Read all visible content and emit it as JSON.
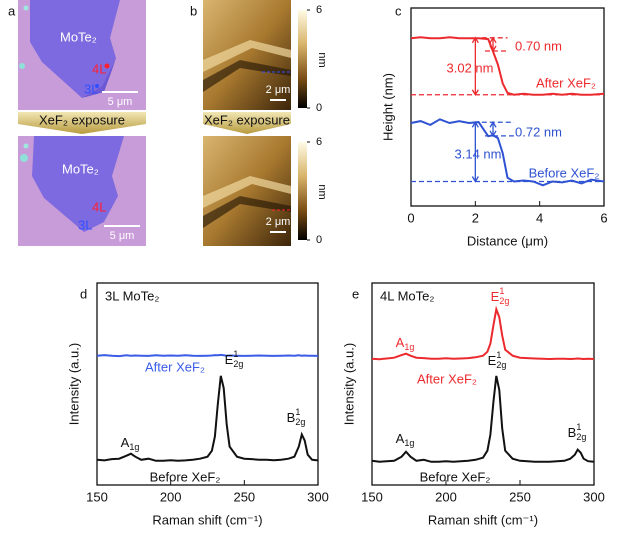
{
  "figure": {
    "a": {
      "label": "a",
      "before": {
        "material": "MoTe₂",
        "layer_4": "4L",
        "layer_3": "3L",
        "scale": "5 μm"
      },
      "treatment": "XeF₂ exposure",
      "after": {
        "material": "MoTe₂",
        "layer_4": "4L",
        "layer_3": "3L",
        "scale": "5 μm"
      }
    },
    "b": {
      "label": "b",
      "treatment": "XeF₂ exposure",
      "scale_top": "2 μm",
      "scale_bottom": "2 μm",
      "colorbar": {
        "label": "nm",
        "lim": [
          0,
          6
        ],
        "ticks": [
          0,
          6
        ]
      }
    }
  },
  "chart_data": [
    {
      "type": "line",
      "panel_label": "c",
      "xlabel": "Distance (μm)",
      "ylabel": "Height (nm)",
      "x": [
        0,
        0.3,
        0.6,
        0.9,
        1.2,
        1.5,
        1.8,
        2.1,
        2.4,
        2.55,
        2.7,
        2.85,
        3.0,
        3.2,
        3.5,
        3.8,
        4.1,
        4.4,
        4.7,
        5.0,
        5.3,
        5.6,
        6.0
      ],
      "xlim": [
        0,
        6
      ],
      "xticks": [
        0,
        2,
        4,
        6
      ],
      "ylim": [
        0,
        10.5
      ],
      "series": [
        {
          "name": "After XeF₂",
          "color": "#ec2a2e",
          "values": [
            8.9,
            8.95,
            8.9,
            8.9,
            8.95,
            8.9,
            8.9,
            8.9,
            8.85,
            8.2,
            7.5,
            6.5,
            6.0,
            5.9,
            5.95,
            5.9,
            5.9,
            5.95,
            5.9,
            5.95,
            5.9,
            5.9,
            5.95
          ]
        },
        {
          "name": "Before XeF₂",
          "color": "#2f52d2",
          "values": [
            4.4,
            4.5,
            4.3,
            4.6,
            4.4,
            4.5,
            4.4,
            4.45,
            3.7,
            3.75,
            3.6,
            2.8,
            1.5,
            1.3,
            1.35,
            1.3,
            1.1,
            1.3,
            1.25,
            1.35,
            1.2,
            1.4,
            1.3
          ]
        }
      ],
      "reference_lines": [
        {
          "y": 8.92,
          "xmin": 2.2,
          "xmax": 3.0,
          "color": "#ec2a2e"
        },
        {
          "y": 8.22,
          "xmin": 2.3,
          "xmax": 3.0,
          "color": "#ec2a2e"
        },
        {
          "y": 5.9,
          "xmin": 0,
          "xmax": 6,
          "color": "#ec2a2e"
        },
        {
          "y": 4.44,
          "xmin": 2.2,
          "xmax": 3.2,
          "color": "#2f52d2"
        },
        {
          "y": 3.72,
          "xmin": 2.3,
          "xmax": 3.2,
          "color": "#2f52d2"
        },
        {
          "y": 1.3,
          "xmin": 0,
          "xmax": 6,
          "color": "#2f52d2"
        }
      ],
      "annotations": [
        {
          "text": "0.70 nm",
          "color": "#ec2a2e"
        },
        {
          "text": "3.02 nm",
          "color": "#ec2a2e"
        },
        {
          "text": "0.72 nm",
          "color": "#2f52d2"
        },
        {
          "text": "3.14 nm",
          "color": "#2f52d2"
        }
      ]
    },
    {
      "type": "line",
      "panel_label": "d",
      "xlabel": "Raman shift (cm⁻¹)",
      "ylabel": "Intensity (a.u.)",
      "x": [
        150,
        155,
        160,
        165,
        170,
        173,
        176,
        180,
        185,
        190,
        195,
        200,
        205,
        210,
        215,
        220,
        225,
        228,
        230,
        232,
        234,
        236,
        238,
        240,
        245,
        250,
        255,
        260,
        265,
        270,
        275,
        280,
        284,
        287,
        289,
        291,
        293,
        296,
        300
      ],
      "xlim": [
        150,
        300
      ],
      "xticks": [
        150,
        200,
        250,
        300
      ],
      "ylim": [
        0,
        100
      ],
      "series": [
        {
          "name": "After XeF₂",
          "color": "#3b5ce6",
          "values": [
            64,
            64.3,
            64,
            63.8,
            64.2,
            64,
            64.1,
            64,
            63.9,
            64.2,
            64,
            64.1,
            64,
            64.2,
            64,
            63.9,
            64,
            64.1,
            64.3,
            64.2,
            64.4,
            64.2,
            64,
            64.1,
            64,
            63.9,
            64,
            64.1,
            64,
            63.9,
            64,
            64.1,
            64,
            64.2,
            64,
            64.1,
            64,
            64,
            63.9
          ]
        },
        {
          "name": "Before XeF₂",
          "color": "#111111",
          "values": [
            12.5,
            12.2,
            12.8,
            13,
            14.5,
            15.5,
            14,
            12.5,
            13,
            12,
            12,
            12.3,
            12,
            12.2,
            12.5,
            13,
            14,
            17,
            24,
            40,
            54,
            48,
            30,
            19,
            14,
            13,
            12.8,
            12.5,
            12.5,
            12.3,
            12.5,
            13,
            14,
            19,
            25,
            22,
            15,
            12.5,
            12.2
          ]
        }
      ],
      "annotations": [
        {
          "text": "3L MoTe₂",
          "color": "#111111"
        },
        {
          "label": {
            "text": "A",
            "sub": "1g"
          },
          "color": "#111111"
        },
        {
          "label": {
            "text": "E",
            "sup": "1",
            "sub": "2g"
          },
          "color": "#111111"
        },
        {
          "label": {
            "text": "B",
            "sup": "1",
            "sub": "2g"
          },
          "color": "#111111"
        }
      ]
    },
    {
      "type": "line",
      "panel_label": "e",
      "xlabel": "Raman shift (cm⁻¹)",
      "ylabel": "Intensity (a.u.)",
      "x": [
        150,
        155,
        160,
        165,
        170,
        173,
        176,
        180,
        185,
        190,
        195,
        200,
        205,
        210,
        215,
        220,
        225,
        228,
        230,
        232,
        234,
        236,
        238,
        240,
        245,
        250,
        255,
        260,
        265,
        270,
        275,
        280,
        284,
        287,
        289,
        291,
        293,
        296,
        300
      ],
      "xlim": [
        150,
        300
      ],
      "xticks": [
        150,
        200,
        250,
        300
      ],
      "ylim": [
        0,
        100
      ],
      "series": [
        {
          "name": "After XeF₂",
          "color": "#ec2a2e",
          "values": [
            62.5,
            62.3,
            62.6,
            63,
            64.3,
            65,
            64,
            63,
            62.8,
            62.5,
            62.5,
            62.7,
            62.5,
            62.6,
            62.8,
            63.2,
            64,
            66,
            70,
            79,
            87,
            83,
            74,
            67,
            64,
            63,
            62.8,
            62.6,
            62.5,
            62.4,
            62.5,
            62.5,
            62.4,
            62.5,
            62.6,
            62.5,
            62.4,
            62.5,
            62.4
          ]
        },
        {
          "name": "Before XeF₂",
          "color": "#111111",
          "values": [
            12,
            11.5,
            11.8,
            12,
            14,
            16.5,
            14,
            12,
            12.5,
            11.5,
            11.5,
            11.8,
            11.5,
            11.8,
            12,
            12.5,
            13.5,
            17,
            25,
            41,
            54,
            47,
            28,
            17,
            13,
            12,
            11.8,
            11.5,
            11.5,
            11.5,
            11.8,
            12,
            13,
            15,
            17.5,
            16,
            13,
            11.8,
            11.5
          ]
        }
      ],
      "annotations": [
        {
          "text": "4L MoTe₂",
          "color": "#111111"
        },
        {
          "label": {
            "text": "A",
            "sub": "1g"
          },
          "color": "#ec2a2e"
        },
        {
          "label": {
            "text": "E",
            "sup": "1",
            "sub": "2g"
          },
          "color": "#ec2a2e"
        },
        {
          "label": {
            "text": "E",
            "sup": "1",
            "sub": "2g"
          },
          "color": "#111111"
        },
        {
          "label": {
            "text": "A",
            "sub": "1g"
          },
          "color": "#111111"
        },
        {
          "label": {
            "text": "B",
            "sup": "1",
            "sub": "2g"
          },
          "color": "#111111"
        }
      ]
    }
  ]
}
